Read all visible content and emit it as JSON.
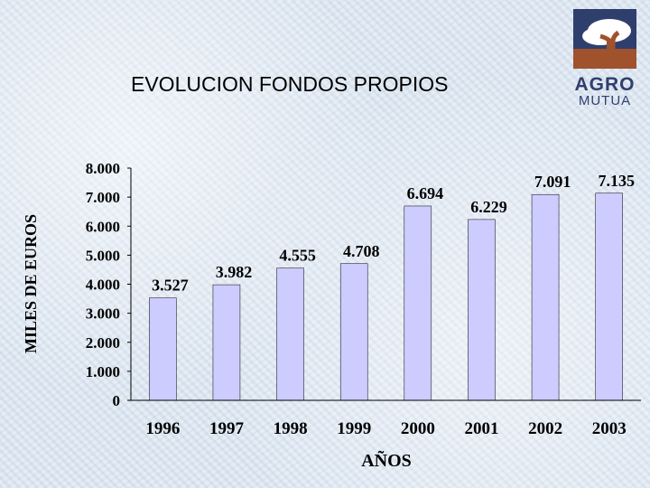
{
  "slide": {
    "title": "EVOLUCION FONDOS PROPIOS"
  },
  "logo": {
    "line1": "AGRO",
    "line2": "MUTUA",
    "icon": "tree-logo-icon",
    "colors": {
      "box": "#2f3f6d",
      "tree": "#a0522d"
    }
  },
  "chart_data": {
    "type": "bar",
    "title": "",
    "xlabel": "AÑOS",
    "ylabel": "MILES DE EUROS",
    "categories": [
      "1996",
      "1997",
      "1998",
      "1999",
      "2000",
      "2001",
      "2002",
      "2003"
    ],
    "values": [
      3527,
      3982,
      4555,
      4708,
      6694,
      6229,
      7091,
      7135
    ],
    "value_labels": [
      "3.527",
      "3.982",
      "4.555",
      "4.708",
      "6.694",
      "6.229",
      "7.091",
      "7.135"
    ],
    "yticks": [
      "0",
      "1.000",
      "2.000",
      "3.000",
      "4.000",
      "5.000",
      "6.000",
      "7.000",
      "8.000"
    ],
    "ylim": [
      0,
      8000
    ],
    "grid": false,
    "legend": "none",
    "colors": {
      "bar": "#ccccff",
      "bar_edge": "#000000"
    }
  }
}
